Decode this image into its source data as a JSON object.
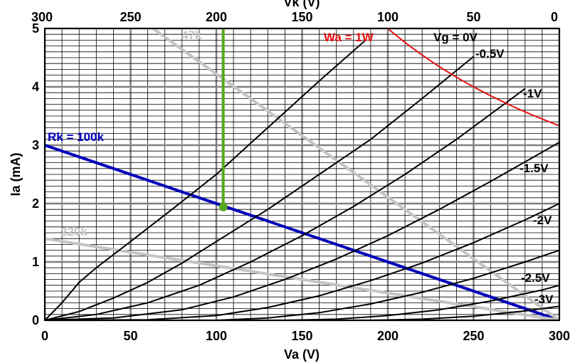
{
  "chart_data": {
    "type": "line",
    "xlabel": "Va (V)",
    "ylabel": "Ia (mA)",
    "top_xlabel": "Vk (V)",
    "xlim": [
      0,
      300
    ],
    "ylim": [
      0,
      5
    ],
    "grid": true,
    "x_ticks": [
      "0",
      "50",
      "100",
      "150",
      "200",
      "250",
      "300"
    ],
    "top_x_ticks": [
      "300",
      "250",
      "200",
      "150",
      "100",
      "50",
      "0"
    ],
    "y_ticks": [
      "0",
      "1",
      "2",
      "3",
      "4",
      "5"
    ],
    "anode_curves": [
      {
        "label": "Vg = 0V",
        "color": "#000000",
        "points": [
          [
            0,
            0
          ],
          [
            10,
            0.3
          ],
          [
            20,
            0.65
          ],
          [
            30,
            0.9
          ],
          [
            50,
            1.35
          ],
          [
            75,
            1.92
          ],
          [
            100,
            2.5
          ],
          [
            130,
            3.3
          ],
          [
            160,
            4.1
          ],
          [
            187,
            4.8
          ]
        ]
      },
      {
        "label": "-0.5V",
        "color": "#000000",
        "points": [
          [
            0,
            0
          ],
          [
            20,
            0.15
          ],
          [
            40,
            0.38
          ],
          [
            60,
            0.65
          ],
          [
            80,
            0.98
          ],
          [
            100,
            1.35
          ],
          [
            130,
            1.9
          ],
          [
            160,
            2.5
          ],
          [
            190,
            3.1
          ],
          [
            220,
            3.8
          ],
          [
            250,
            4.52
          ]
        ]
      },
      {
        "label": "-1V",
        "color": "#000000",
        "points": [
          [
            0,
            0
          ],
          [
            30,
            0.1
          ],
          [
            60,
            0.3
          ],
          [
            90,
            0.6
          ],
          [
            120,
            1.0
          ],
          [
            150,
            1.45
          ],
          [
            180,
            1.95
          ],
          [
            210,
            2.5
          ],
          [
            240,
            3.1
          ],
          [
            270,
            3.75
          ],
          [
            280,
            3.97
          ]
        ]
      },
      {
        "label": "-1.5V",
        "color": "#000000",
        "points": [
          [
            0,
            0
          ],
          [
            40,
            0.04
          ],
          [
            80,
            0.18
          ],
          [
            110,
            0.4
          ],
          [
            140,
            0.7
          ],
          [
            170,
            1.05
          ],
          [
            200,
            1.45
          ],
          [
            230,
            1.9
          ],
          [
            260,
            2.38
          ],
          [
            290,
            2.88
          ],
          [
            300,
            3.05
          ]
        ]
      },
      {
        "label": "-2V",
        "color": "#000000",
        "points": [
          [
            0,
            0
          ],
          [
            60,
            0.01
          ],
          [
            100,
            0.08
          ],
          [
            130,
            0.22
          ],
          [
            160,
            0.42
          ],
          [
            190,
            0.68
          ],
          [
            220,
            0.98
          ],
          [
            250,
            1.33
          ],
          [
            280,
            1.72
          ],
          [
            300,
            2.0
          ]
        ]
      },
      {
        "label": "-2.5V",
        "color": "#000000",
        "points": [
          [
            0,
            0
          ],
          [
            100,
            0.0
          ],
          [
            130,
            0.04
          ],
          [
            160,
            0.13
          ],
          [
            190,
            0.28
          ],
          [
            220,
            0.48
          ],
          [
            250,
            0.72
          ],
          [
            280,
            1.0
          ],
          [
            300,
            1.2
          ]
        ]
      },
      {
        "label": "-3V",
        "color": "#000000",
        "points": [
          [
            0,
            0
          ],
          [
            140,
            0.0
          ],
          [
            170,
            0.02
          ],
          [
            200,
            0.08
          ],
          [
            230,
            0.18
          ],
          [
            260,
            0.33
          ],
          [
            290,
            0.52
          ],
          [
            300,
            0.6
          ]
        ]
      },
      {
        "label": "",
        "color": "#000000",
        "points": [
          [
            0,
            0
          ],
          [
            190,
            0.0
          ],
          [
            220,
            0.02
          ],
          [
            250,
            0.07
          ],
          [
            280,
            0.16
          ],
          [
            300,
            0.24
          ]
        ]
      }
    ],
    "power_curve": {
      "label": "Wa = 1W",
      "color": "#e81010",
      "watts": 1,
      "va_range": [
        200,
        300
      ]
    },
    "load_lines": [
      {
        "label": "Rk = 100k",
        "color": "#0000bb",
        "points": [
          [
            0,
            3
          ],
          [
            300,
            0
          ]
        ]
      },
      {
        "label": "220k",
        "color": "#c4c4c4",
        "points": [
          [
            0,
            1.4
          ],
          [
            300,
            0
          ]
        ]
      },
      {
        "label": "47k",
        "color": "#c4c4c4",
        "points": [
          [
            63,
            5
          ],
          [
            300,
            0
          ]
        ]
      }
    ],
    "operating_point": {
      "va": 104,
      "ia": 1.94,
      "color": "#55a81b",
      "line_to_ia": 5
    },
    "annotations": [
      {
        "text": "Rk = 100k",
        "color": "#0000bb"
      },
      {
        "text": "220k",
        "color": "#c4c4c4"
      },
      {
        "text": "47k",
        "color": "#c4c4c4"
      },
      {
        "text": "Wa = 1W",
        "color": "#e81010"
      },
      {
        "text": "Vg = 0V",
        "color": "#000000"
      },
      {
        "text": "-0.5V",
        "color": "#000000"
      },
      {
        "text": "-1V",
        "color": "#000000"
      },
      {
        "text": "-1.5V",
        "color": "#000000"
      },
      {
        "text": "-2V",
        "color": "#000000"
      },
      {
        "text": "-2.5V",
        "color": "#000000"
      },
      {
        "text": "-3V",
        "color": "#000000"
      }
    ]
  }
}
